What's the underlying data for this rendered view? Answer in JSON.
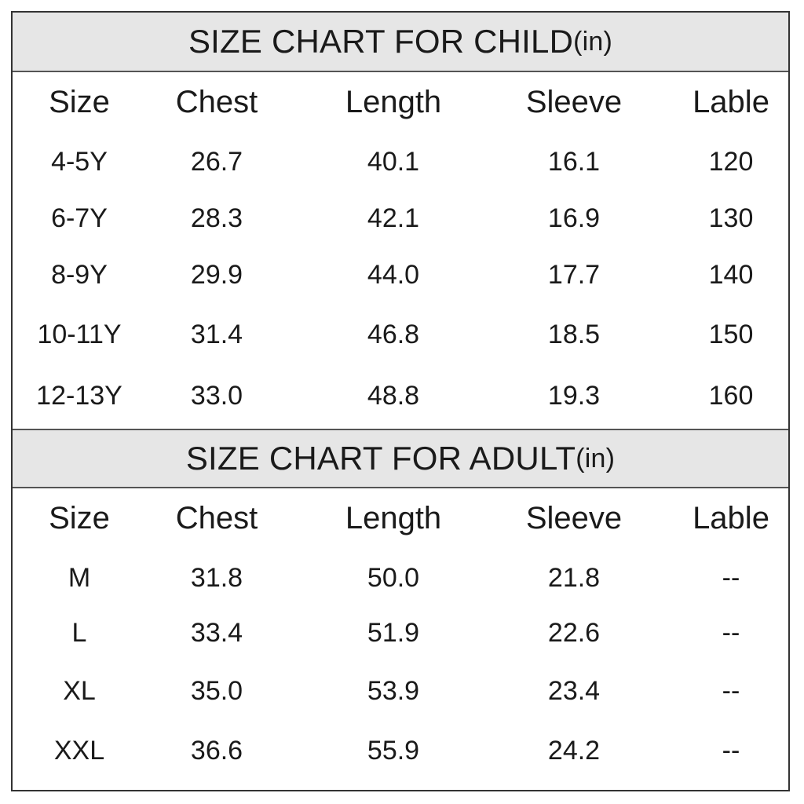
{
  "chart_data": [
    {
      "type": "table",
      "title": "SIZE CHART FOR CHILD",
      "unit": "(in)",
      "columns": [
        "Size",
        "Chest",
        "Length",
        "Sleeve",
        "Lable"
      ],
      "rows": [
        [
          "4-5Y",
          "26.7",
          "40.1",
          "16.1",
          "120"
        ],
        [
          "6-7Y",
          "28.3",
          "42.1",
          "16.9",
          "130"
        ],
        [
          "8-9Y",
          "29.9",
          "44.0",
          "17.7",
          "140"
        ],
        [
          "10-11Y",
          "31.4",
          "46.8",
          "18.5",
          "150"
        ],
        [
          "12-13Y",
          "33.0",
          "48.8",
          "19.3",
          "160"
        ]
      ]
    },
    {
      "type": "table",
      "title": "SIZE CHART FOR ADULT",
      "unit": "(in)",
      "columns": [
        "Size",
        "Chest",
        "Length",
        "Sleeve",
        "Lable"
      ],
      "rows": [
        [
          "M",
          "31.8",
          "50.0",
          "21.8",
          "--"
        ],
        [
          "L",
          "33.4",
          "51.9",
          "22.6",
          "--"
        ],
        [
          "XL",
          "35.0",
          "53.9",
          "23.4",
          "--"
        ],
        [
          "XXL",
          "36.6",
          "55.9",
          "24.2",
          "--"
        ]
      ]
    }
  ],
  "colors": {
    "header_background": "#e6e6e6",
    "border": "#333333",
    "text": "#1a1a1a"
  }
}
